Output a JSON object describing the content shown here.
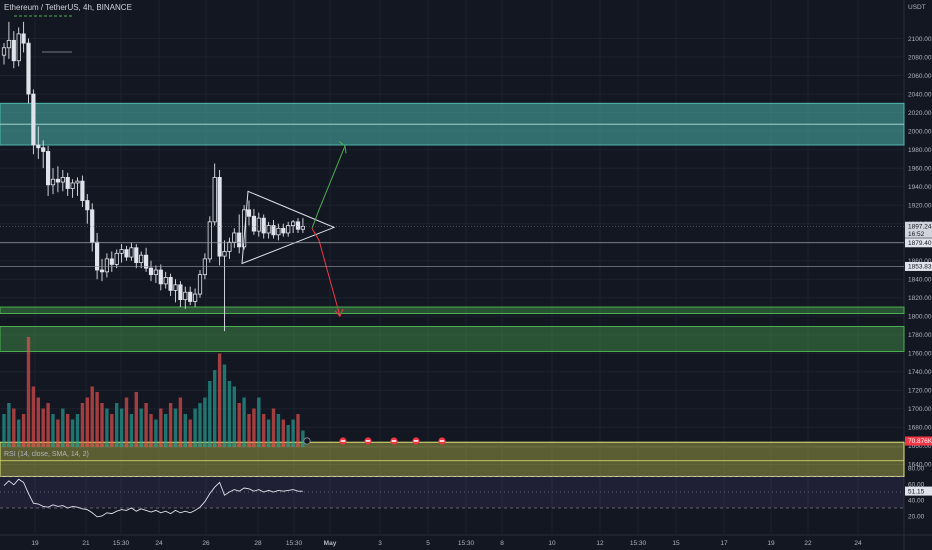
{
  "header": {
    "title": "Ethereum / TetherUS, 4h, BINANCE",
    "currency": "USDT",
    "rsi_legend": "RSI (14, close, SMA, 14, 2)"
  },
  "colors": {
    "background": "#131722",
    "grid": "#1e222d",
    "up": "#26a69a",
    "down": "#ef5350",
    "zone_green": "#4caf50",
    "zone_teal": "#4db6ac",
    "zone_yellow": "#c9c94a",
    "rsi_line": "#e0e3eb",
    "rsi_band": "#7e57c2",
    "arrow_up": "#4caf50",
    "arrow_down": "#f23645"
  },
  "chart_data": {
    "type": "candlestick",
    "title": "Ethereum / TetherUS, 4h, BINANCE",
    "ylabel": "USDT",
    "ylim": [
      1580,
      2120
    ],
    "y_ticks": [
      2100,
      2080,
      2060,
      2040,
      2020,
      2000,
      1980,
      1960,
      1940,
      1920,
      1900,
      1880,
      1860,
      1840,
      1820,
      1800,
      1780,
      1760,
      1740,
      1720,
      1700,
      1680,
      1660,
      1640
    ],
    "x_ticks": [
      "19",
      "21",
      "15:30",
      "24",
      "26",
      "28",
      "15:30",
      "May",
      "3",
      "5",
      "15:30",
      "8",
      "10",
      "12",
      "15:30",
      "15",
      "17",
      "19",
      "22",
      "24"
    ],
    "price_tags": [
      {
        "label": "1897.24",
        "sub": "16:52",
        "value": 1897.24
      },
      {
        "label": "1879.40",
        "value": 1879.4
      },
      {
        "label": "1853.83",
        "value": 1853.83
      }
    ],
    "volume_tag": "70.876K",
    "rsi_tag": "51.15",
    "zones": [
      {
        "color": "teal",
        "top": 2030,
        "bottom": 1985
      },
      {
        "color": "green",
        "top": 1810,
        "bottom": 1803
      },
      {
        "color": "green",
        "top": 1789,
        "bottom": 1762
      }
    ],
    "volume_zone": {
      "color": "yellow",
      "top": 1664,
      "bottom": 1627
    },
    "ohlc": [
      [
        2082,
        2095,
        2072,
        2090
      ],
      [
        2090,
        2118,
        2078,
        2098
      ],
      [
        2098,
        2108,
        2068,
        2076
      ],
      [
        2076,
        2112,
        2070,
        2105
      ],
      [
        2105,
        2118,
        2085,
        2095
      ],
      [
        2095,
        2100,
        2030,
        2040
      ],
      [
        2040,
        2045,
        1975,
        1985
      ],
      [
        1985,
        2005,
        1970,
        1982
      ],
      [
        1982,
        1990,
        1960,
        1978
      ],
      [
        1978,
        1984,
        1930,
        1942
      ],
      [
        1942,
        1960,
        1932,
        1948
      ],
      [
        1948,
        1962,
        1934,
        1945
      ],
      [
        1945,
        1958,
        1935,
        1950
      ],
      [
        1950,
        1955,
        1930,
        1938
      ],
      [
        1938,
        1948,
        1928,
        1944
      ],
      [
        1944,
        1950,
        1930,
        1946
      ],
      [
        1946,
        1952,
        1918,
        1925
      ],
      [
        1925,
        1932,
        1900,
        1915
      ],
      [
        1915,
        1922,
        1870,
        1880
      ],
      [
        1880,
        1890,
        1840,
        1850
      ],
      [
        1850,
        1862,
        1838,
        1848
      ],
      [
        1848,
        1868,
        1842,
        1862
      ],
      [
        1862,
        1870,
        1848,
        1856
      ],
      [
        1856,
        1872,
        1852,
        1868
      ],
      [
        1868,
        1878,
        1858,
        1872
      ],
      [
        1872,
        1876,
        1860,
        1864
      ],
      [
        1864,
        1880,
        1860,
        1874
      ],
      [
        1874,
        1878,
        1852,
        1858
      ],
      [
        1858,
        1870,
        1852,
        1866
      ],
      [
        1866,
        1874,
        1848,
        1852
      ],
      [
        1852,
        1860,
        1838,
        1845
      ],
      [
        1845,
        1855,
        1836,
        1850
      ],
      [
        1850,
        1856,
        1828,
        1835
      ],
      [
        1835,
        1848,
        1830,
        1842
      ],
      [
        1842,
        1846,
        1822,
        1828
      ],
      [
        1828,
        1840,
        1815,
        1834
      ],
      [
        1834,
        1838,
        1810,
        1818
      ],
      [
        1818,
        1832,
        1808,
        1826
      ],
      [
        1826,
        1832,
        1812,
        1816
      ],
      [
        1816,
        1830,
        1810,
        1824
      ],
      [
        1824,
        1850,
        1820,
        1845
      ],
      [
        1845,
        1868,
        1840,
        1862
      ],
      [
        1862,
        1908,
        1858,
        1902
      ],
      [
        1902,
        1965,
        1898,
        1950
      ],
      [
        1950,
        1958,
        1855,
        1865
      ],
      [
        1865,
        1882,
        1784,
        1870
      ],
      [
        1870,
        1885,
        1862,
        1880
      ],
      [
        1880,
        1895,
        1874,
        1890
      ],
      [
        1890,
        1910,
        1868,
        1875
      ],
      [
        1875,
        1920,
        1872,
        1915
      ],
      [
        1915,
        1925,
        1898,
        1908
      ],
      [
        1908,
        1916,
        1888,
        1892
      ],
      [
        1892,
        1912,
        1886,
        1906
      ],
      [
        1906,
        1910,
        1884,
        1890
      ],
      [
        1890,
        1902,
        1884,
        1898
      ],
      [
        1898,
        1904,
        1884,
        1888
      ],
      [
        1888,
        1900,
        1882,
        1895
      ],
      [
        1895,
        1900,
        1886,
        1890
      ],
      [
        1890,
        1902,
        1886,
        1898
      ],
      [
        1898,
        1904,
        1890,
        1902
      ],
      [
        1902,
        1906,
        1890,
        1894
      ],
      [
        1894,
        1906,
        1890,
        1897
      ]
    ],
    "volume_ratio": [
      0.3,
      0.4,
      0.35,
      0.25,
      0.3,
      1.0,
      0.55,
      0.45,
      0.35,
      0.4,
      0.3,
      0.25,
      0.35,
      0.3,
      0.25,
      0.3,
      0.4,
      0.45,
      0.55,
      0.5,
      0.4,
      0.35,
      0.3,
      0.4,
      0.35,
      0.45,
      0.3,
      0.5,
      0.35,
      0.4,
      0.3,
      0.25,
      0.35,
      0.3,
      0.4,
      0.35,
      0.45,
      0.3,
      0.25,
      0.35,
      0.4,
      0.45,
      0.6,
      0.7,
      0.85,
      0.75,
      0.6,
      0.55,
      0.4,
      0.45,
      0.3,
      0.35,
      0.45,
      0.3,
      0.25,
      0.35,
      0.3,
      0.25,
      0.2,
      0.25,
      0.3,
      0.15
    ],
    "rsi": {
      "ylim": [
        0,
        100
      ],
      "y_ticks": [
        80,
        60,
        40,
        20
      ],
      "bands": [
        70,
        50,
        30
      ],
      "values": [
        58,
        64,
        59,
        66,
        62,
        48,
        36,
        35,
        32,
        31,
        34,
        32,
        33,
        30,
        32,
        31,
        29,
        28,
        24,
        19,
        20,
        24,
        23,
        26,
        28,
        27,
        30,
        26,
        29,
        27,
        25,
        27,
        24,
        26,
        23,
        27,
        24,
        26,
        24,
        27,
        31,
        38,
        48,
        56,
        62,
        46,
        50,
        53,
        51,
        55,
        54,
        51,
        53,
        50,
        52,
        50,
        52,
        51,
        52,
        53,
        51,
        51
      ]
    },
    "triangle_pattern": {
      "apex": [
        1896,
        1892
      ],
      "upper_start": 1935,
      "lower_start": 1857
    }
  }
}
